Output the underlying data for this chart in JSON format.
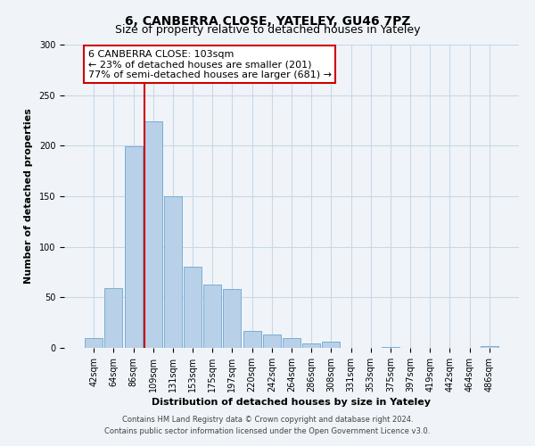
{
  "title": "6, CANBERRA CLOSE, YATELEY, GU46 7PZ",
  "subtitle": "Size of property relative to detached houses in Yateley",
  "xlabel": "Distribution of detached houses by size in Yateley",
  "ylabel": "Number of detached properties",
  "bar_labels": [
    "42sqm",
    "64sqm",
    "86sqm",
    "109sqm",
    "131sqm",
    "153sqm",
    "175sqm",
    "197sqm",
    "220sqm",
    "242sqm",
    "264sqm",
    "286sqm",
    "308sqm",
    "331sqm",
    "353sqm",
    "375sqm",
    "397sqm",
    "419sqm",
    "442sqm",
    "464sqm",
    "486sqm"
  ],
  "bar_values": [
    10,
    59,
    199,
    224,
    150,
    80,
    63,
    58,
    17,
    13,
    10,
    4,
    6,
    0,
    0,
    1,
    0,
    0,
    0,
    0,
    2
  ],
  "bar_color": "#b8d0e8",
  "bar_edge_color": "#7aaed6",
  "vline_color": "#cc0000",
  "vline_x_index": 3,
  "annotation_text_line1": "6 CANBERRA CLOSE: 103sqm",
  "annotation_text_line2": "← 23% of detached houses are smaller (201)",
  "annotation_text_line3": "77% of semi-detached houses are larger (681) →",
  "ylim": [
    0,
    300
  ],
  "yticks": [
    0,
    50,
    100,
    150,
    200,
    250,
    300
  ],
  "footer_line1": "Contains HM Land Registry data © Crown copyright and database right 2024.",
  "footer_line2": "Contains public sector information licensed under the Open Government Licence v3.0.",
  "bg_color": "#f0f4f8",
  "plot_bg_color": "#f0f4f8",
  "grid_color": "#c8d8e8",
  "title_fontsize": 10,
  "axis_label_fontsize": 8,
  "tick_fontsize": 7,
  "annotation_fontsize": 8,
  "footer_fontsize": 6
}
